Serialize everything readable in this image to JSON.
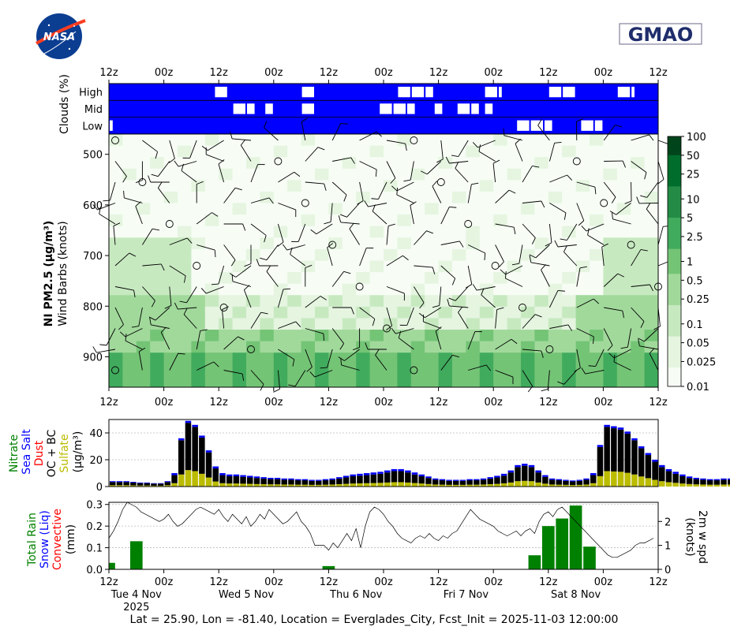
{
  "header": {
    "logo_left": "NASA",
    "logo_right": "GMAO"
  },
  "time_axis": {
    "top_ticks": [
      "12z",
      "00z",
      "12z",
      "00z",
      "12z",
      "00z",
      "12z",
      "00z",
      "12z",
      "00z",
      "12z"
    ],
    "bottom_ticks": [
      "12z",
      "00z",
      "12z",
      "00z",
      "12z",
      "00z",
      "12z",
      "00z",
      "12z",
      "00z",
      "12z"
    ],
    "day_labels": [
      "Tue 4 Nov",
      "Wed 5 Nov",
      "Thu 6 Nov",
      "Fri 7 Nov",
      "Sat 8 Nov"
    ],
    "year_label": "2025",
    "hours": [
      0,
      12,
      24,
      36,
      48,
      60,
      72,
      84,
      96,
      108,
      120
    ]
  },
  "footer": "Lat = 25.90, Lon = -81.40, Location = Everglades_City, Fcst_Init = 2025-11-03 12:00:00",
  "chart_data": [
    {
      "type": "heatmap",
      "panel": "clouds",
      "ylabel": "Clouds (%)",
      "rows": [
        "High",
        "Mid",
        "Low"
      ],
      "clear_intervals_hours": {
        "High": [
          [
            23,
            26
          ],
          [
            42,
            45
          ],
          [
            63,
            71
          ],
          [
            82,
            86
          ],
          [
            96,
            102
          ],
          [
            111,
            115
          ]
        ],
        "Mid": [
          [
            27,
            32
          ],
          [
            34,
            36
          ],
          [
            42,
            45
          ],
          [
            59,
            67
          ],
          [
            71,
            73
          ],
          [
            76,
            81
          ],
          [
            82,
            84
          ]
        ],
        "Low": [
          [
            0,
            1
          ],
          [
            89,
            97
          ],
          [
            103,
            108
          ]
        ]
      },
      "colors": {
        "cloud": "#0000ff",
        "clear": "#ffffff"
      }
    },
    {
      "type": "heatmap",
      "panel": "pm25_profile",
      "ylabel": "NI PM2.5 (μg/m³)",
      "ylabel2": "Wind Barbs (knots)",
      "yticks": [
        500,
        600,
        700,
        800,
        900
      ],
      "ylim": [
        960,
        460
      ],
      "colorbar": {
        "ticks": [
          "100",
          "50",
          "25",
          "10",
          "5",
          "2.5",
          "1",
          "0.5",
          "0.25",
          "0.1",
          "0.05",
          "0.025",
          "0.01"
        ],
        "scale": "log",
        "range": [
          0.01,
          100
        ]
      },
      "colors": [
        "#f7fcf5",
        "#e5f5e0",
        "#c7e9c0",
        "#a1d99b",
        "#74c476",
        "#41ab5d",
        "#238b45",
        "#006d2c",
        "#00441b"
      ]
    },
    {
      "type": "bar",
      "panel": "aerosols",
      "legend_labels": [
        "Nitrate",
        "Sea Salt",
        "Dust",
        "OC + BC",
        "Sulfate"
      ],
      "legend_colors": [
        "#008000",
        "#0000ff",
        "#ff0000",
        "#000000",
        "#bbbb00"
      ],
      "ylabel": "(μg/m³)",
      "yticks": [
        "0",
        "20",
        "40"
      ],
      "ylim": [
        0,
        50
      ],
      "x_start_hour": 0,
      "x_step_hours": 1.5,
      "totals": [
        4,
        4,
        4,
        3.5,
        3,
        3,
        2.5,
        2.5,
        4,
        10,
        36,
        49,
        46,
        38,
        27,
        15,
        10,
        9,
        9,
        8.5,
        8,
        7.5,
        7,
        6.5,
        6.5,
        6,
        6,
        5.5,
        5.5,
        5,
        5,
        5.5,
        6,
        7,
        8,
        9,
        9.5,
        10,
        10.5,
        11,
        12,
        13,
        13,
        12,
        10.5,
        9,
        7.5,
        6,
        5.5,
        5,
        5,
        5,
        5.5,
        5.5,
        6,
        7,
        8,
        9.5,
        12,
        16,
        17,
        16,
        12,
        8.5,
        6,
        5.5,
        5,
        4.5,
        5,
        6,
        10,
        31,
        46,
        45,
        44,
        41,
        36,
        30,
        25,
        20,
        16,
        13,
        11,
        9,
        7.5,
        6.5,
        6,
        5.5,
        5.5,
        6,
        6,
        6,
        6.5,
        6,
        6,
        6,
        6,
        6,
        6
      ],
      "sulfate_fraction": 0.25
    },
    {
      "type": "bar",
      "panel": "precip",
      "legend_labels": [
        "Total Rain",
        "Snow (Liq)",
        "Convective"
      ],
      "legend_colors": [
        "#008000",
        "#0000ff",
        "#ff0000"
      ],
      "ylabel": "(mm)",
      "ylabel_right": "2m w spd",
      "ylabel_right2": "(knots)",
      "yticks": [
        "0.0",
        "0.1",
        "0.2",
        "0.3"
      ],
      "ylim": [
        0,
        0.31
      ],
      "yticks_right": [
        "0",
        "1",
        "2"
      ],
      "ylim_right": [
        0,
        2.8
      ],
      "rain_bars": [
        {
          "hour": 0,
          "value": 0.03
        },
        {
          "hour": 6,
          "value": 0.13
        },
        {
          "hour": 48,
          "value": 0.015
        },
        {
          "hour": 93,
          "value": 0.065
        },
        {
          "hour": 96,
          "value": 0.2
        },
        {
          "hour": 99,
          "value": 0.235
        },
        {
          "hour": 102,
          "value": 0.295
        },
        {
          "hour": 105,
          "value": 0.105
        }
      ],
      "bar_width_hours": 2.7,
      "wind_speed_series": {
        "name": "2m w spd",
        "x_step_hours": 1,
        "values": [
          1.3,
          1.6,
          2.0,
          2.5,
          2.8,
          2.7,
          2.6,
          2.4,
          2.3,
          2.2,
          2.1,
          2.0,
          2.1,
          2.3,
          2.0,
          1.8,
          1.9,
          2.1,
          2.3,
          2.5,
          2.6,
          2.5,
          2.4,
          2.3,
          2.5,
          2.2,
          2.0,
          2.3,
          2.1,
          1.9,
          2.2,
          1.8,
          2.0,
          2.3,
          2.1,
          2.5,
          2.3,
          2.1,
          1.9,
          2.0,
          2.2,
          2.4,
          2.0,
          1.8,
          1.5,
          1.0,
          1.0,
          1.0,
          0.8,
          1.1,
          0.9,
          1.2,
          1.5,
          1.2,
          1.7,
          0.9,
          1.8,
          2.4,
          2.6,
          2.5,
          2.3,
          2.0,
          1.8,
          1.5,
          1.3,
          1.2,
          1.1,
          1.3,
          1.4,
          1.3,
          1.5,
          1.3,
          1.2,
          1.4,
          1.3,
          1.5,
          1.6,
          1.9,
          2.2,
          2.5,
          2.3,
          2.1,
          2.0,
          1.9,
          1.8,
          1.6,
          1.5,
          1.4,
          1.5,
          1.6,
          1.4,
          1.6,
          1.7,
          1.5,
          2.0,
          2.3,
          2.4,
          2.2,
          2.5,
          2.6,
          2.4,
          2.2,
          2.0,
          1.8,
          1.6,
          1.4,
          1.2,
          1.0,
          0.8,
          0.6,
          0.5,
          0.5,
          0.6,
          0.7,
          0.8,
          1.0,
          1.1,
          1.1,
          1.2,
          1.3
        ]
      }
    }
  ]
}
